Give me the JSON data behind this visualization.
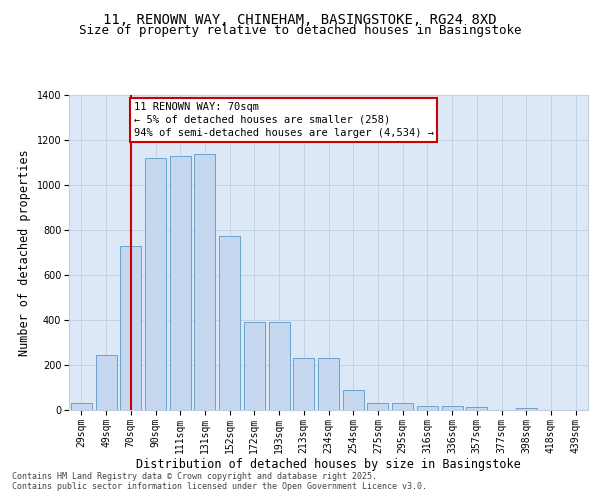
{
  "title1": "11, RENOWN WAY, CHINEHAM, BASINGSTOKE, RG24 8XD",
  "title2": "Size of property relative to detached houses in Basingstoke",
  "xlabel": "Distribution of detached houses by size in Basingstoke",
  "ylabel": "Number of detached properties",
  "categories": [
    "29sqm",
    "49sqm",
    "70sqm",
    "90sqm",
    "111sqm",
    "131sqm",
    "152sqm",
    "172sqm",
    "193sqm",
    "213sqm",
    "234sqm",
    "254sqm",
    "275sqm",
    "295sqm",
    "316sqm",
    "336sqm",
    "357sqm",
    "377sqm",
    "398sqm",
    "418sqm",
    "439sqm"
  ],
  "values": [
    30,
    245,
    730,
    1120,
    1130,
    1140,
    775,
    390,
    390,
    230,
    230,
    90,
    30,
    30,
    20,
    20,
    15,
    0,
    10,
    0,
    0
  ],
  "bar_color": "#c5d8ef",
  "bar_edge_color": "#6aa3cc",
  "red_line_index": 2,
  "annotation_line1": "11 RENOWN WAY: 70sqm",
  "annotation_line2": "← 5% of detached houses are smaller (258)",
  "annotation_line3": "94% of semi-detached houses are larger (4,534) →",
  "annotation_box_color": "#ffffff",
  "annotation_box_edge_color": "#cc0000",
  "ylim": [
    0,
    1400
  ],
  "yticks": [
    0,
    200,
    400,
    600,
    800,
    1000,
    1200,
    1400
  ],
  "bg_color": "#ffffff",
  "plot_bg_color": "#dce8f5",
  "grid_color": "#c0d0e0",
  "footer1": "Contains HM Land Registry data © Crown copyright and database right 2025.",
  "footer2": "Contains public sector information licensed under the Open Government Licence v3.0.",
  "title_fontsize": 10,
  "subtitle_fontsize": 9,
  "axis_label_fontsize": 8.5,
  "tick_fontsize": 7,
  "annotation_fontsize": 7.5,
  "footer_fontsize": 6
}
